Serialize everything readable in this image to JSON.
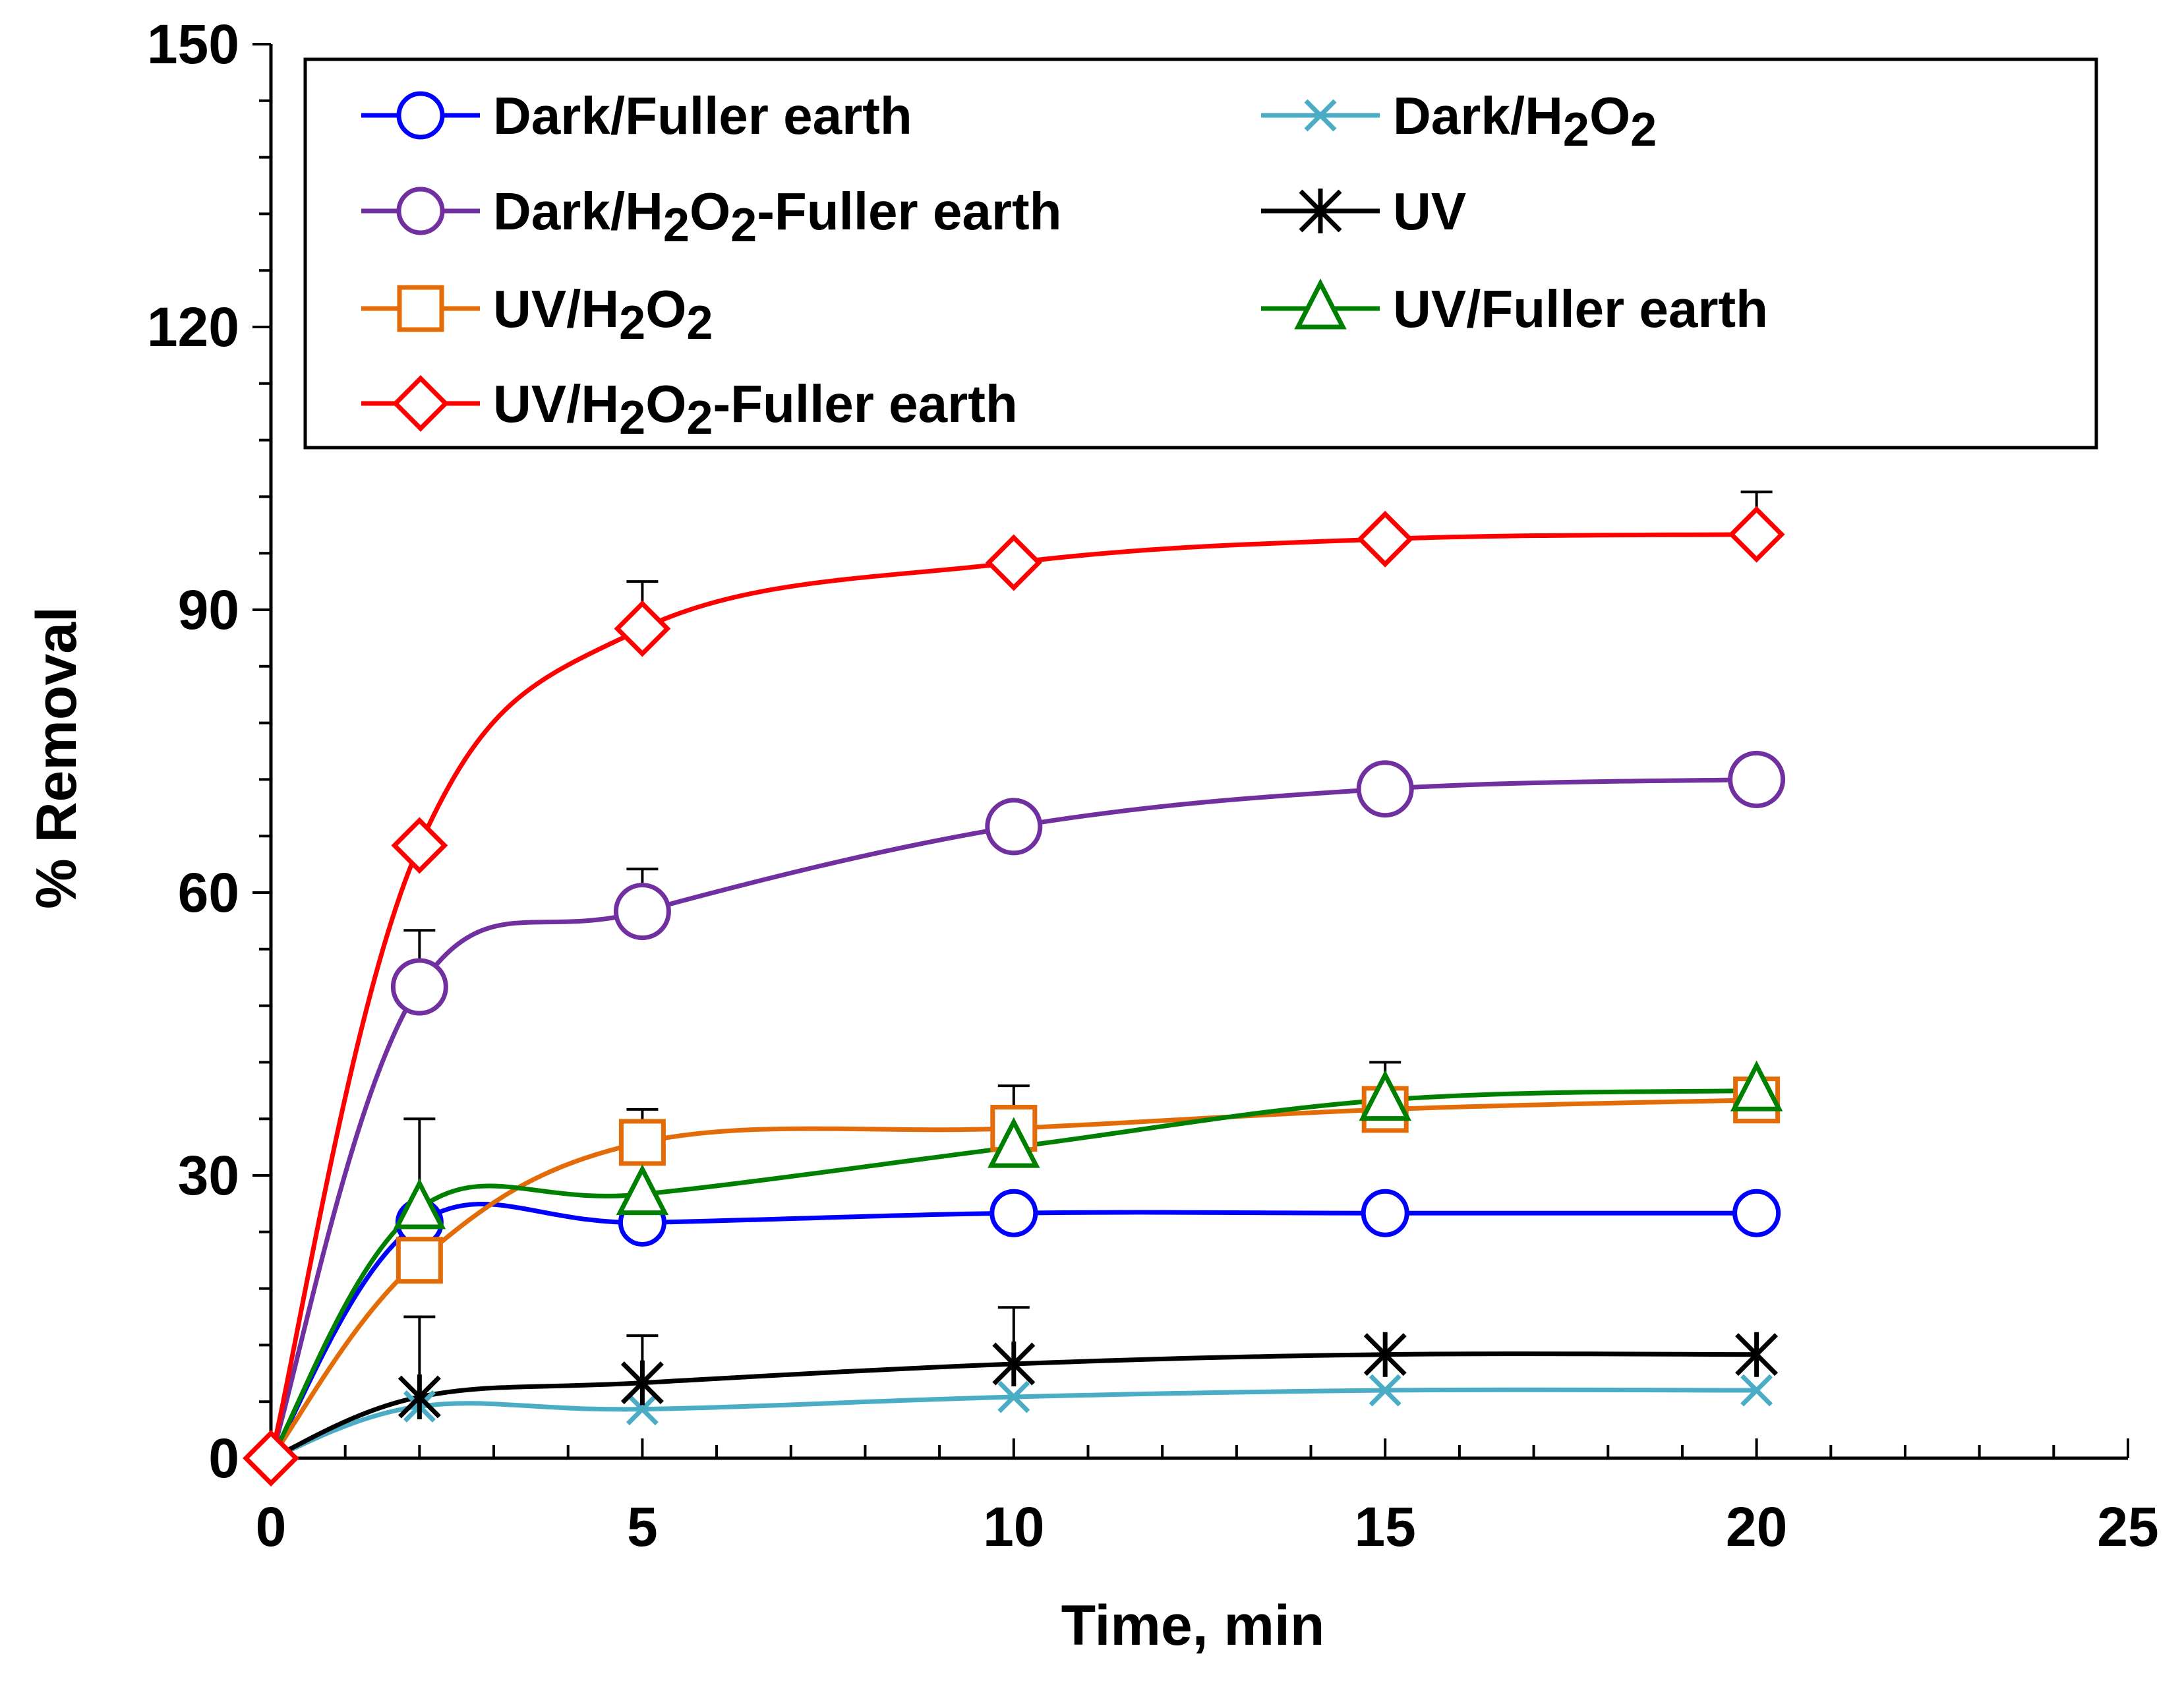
{
  "chart_data": {
    "type": "line",
    "xlabel": "Time, min",
    "ylabel": "% Removal",
    "xlim": [
      0,
      25
    ],
    "ylim": [
      0,
      150
    ],
    "xticks": [
      0,
      5,
      10,
      15,
      20,
      25
    ],
    "yticks": [
      0,
      30,
      60,
      90,
      120,
      150
    ],
    "x_minor_step": 1,
    "y_minor_step": 6,
    "legend_position": "top-left",
    "x": [
      0,
      2,
      5,
      10,
      15,
      20
    ],
    "series": [
      {
        "id": "dark-fuller",
        "name": "Dark/Fuller earth",
        "name_parts": [
          [
            "Dark/Fuller earth",
            ""
          ]
        ],
        "color": "#0000ff",
        "marker": "circle",
        "values": [
          0,
          25,
          25,
          26,
          26,
          26
        ],
        "error_bars": []
      },
      {
        "id": "dark-h2o2",
        "name": "Dark/H2O2",
        "name_parts": [
          [
            "Dark/H",
            ""
          ],
          [
            "2",
            "sub"
          ],
          [
            "O",
            ""
          ],
          [
            "2",
            "sub"
          ]
        ],
        "color": "#4bacc6",
        "marker": "x",
        "values": [
          0,
          5.5,
          5.2,
          6.5,
          7.2,
          7.2
        ],
        "error_bars": []
      },
      {
        "id": "dark-h2o2-fuller",
        "name": "Dark/H2O2-Fuller earth",
        "name_parts": [
          [
            "Dark/H",
            ""
          ],
          [
            "2",
            "sub"
          ],
          [
            "O",
            ""
          ],
          [
            "2",
            "sub"
          ],
          [
            "-Fuller earth",
            ""
          ]
        ],
        "color": "#7030a0",
        "marker": "circle-large",
        "values": [
          0,
          50,
          58,
          67,
          71,
          72
        ],
        "error_bars": [
          [
            2,
            56
          ],
          [
            5,
            62.5
          ]
        ]
      },
      {
        "id": "uv",
        "name": "UV",
        "name_parts": [
          [
            "UV",
            ""
          ]
        ],
        "color": "#000000",
        "marker": "asterisk",
        "values": [
          0,
          6.5,
          8,
          10,
          11,
          11
        ],
        "error_bars": [
          [
            2,
            15
          ],
          [
            5,
            13
          ],
          [
            10,
            16
          ]
        ]
      },
      {
        "id": "uv-h2o2",
        "name": "UV/H2O2",
        "name_parts": [
          [
            "UV/H",
            ""
          ],
          [
            "2",
            "sub"
          ],
          [
            "O",
            ""
          ],
          [
            "2",
            "sub"
          ]
        ],
        "color": "#e36c09",
        "marker": "square",
        "values": [
          0,
          21,
          33.5,
          35,
          37,
          38
        ],
        "error_bars": [
          [
            5,
            37
          ],
          [
            10,
            39.5
          ]
        ]
      },
      {
        "id": "uv-fuller",
        "name": "UV/Fuller earth",
        "name_parts": [
          [
            "UV/Fuller earth",
            ""
          ]
        ],
        "color": "#008000",
        "marker": "triangle",
        "values": [
          0,
          26.5,
          28,
          33,
          38,
          39
        ],
        "error_bars": [
          [
            2,
            36
          ],
          [
            15,
            42
          ]
        ]
      },
      {
        "id": "uv-h2o2-fuller",
        "name": "UV/H2O2-Fuller earth",
        "name_parts": [
          [
            "UV/H",
            ""
          ],
          [
            "2",
            "sub"
          ],
          [
            "O",
            ""
          ],
          [
            "2",
            "sub"
          ],
          [
            "-Fuller earth",
            ""
          ]
        ],
        "color": "#ff0000",
        "marker": "diamond",
        "values": [
          0,
          65,
          88,
          95,
          97.5,
          98
        ],
        "error_bars": [
          [
            5,
            93
          ],
          [
            20,
            102.5
          ]
        ]
      }
    ]
  }
}
